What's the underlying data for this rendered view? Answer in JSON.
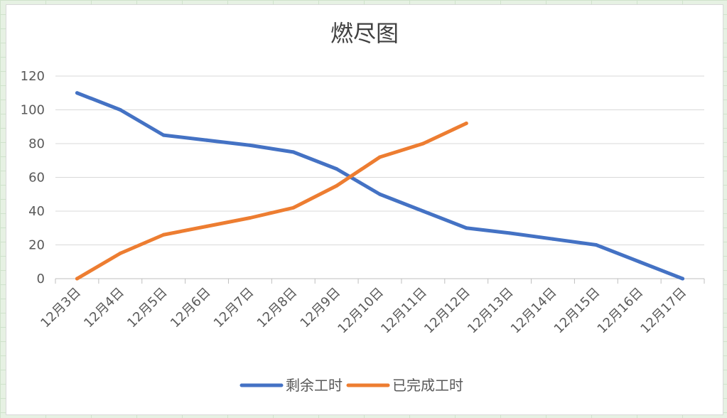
{
  "chart_data": {
    "type": "line",
    "title": "燃尽图",
    "xlabel": "",
    "ylabel": "",
    "ylim": [
      0,
      120
    ],
    "yticks": [
      0,
      20,
      40,
      60,
      80,
      100,
      120
    ],
    "grid": true,
    "legend_position": "bottom",
    "categories": [
      "12月3日",
      "12月4日",
      "12月5日",
      "12月6日",
      "12月7日",
      "12月8日",
      "12月9日",
      "12月10日",
      "12月11日",
      "12月12日",
      "12月13日",
      "12月14日",
      "12月15日",
      "12月16日",
      "12月17日"
    ],
    "series": [
      {
        "name": "剩余工时",
        "color": "#4472c4",
        "values": [
          110,
          100,
          85,
          82,
          79,
          75,
          65,
          50,
          40,
          30,
          27,
          23.5,
          20,
          10,
          0
        ]
      },
      {
        "name": "已完成工时",
        "color": "#ed7d31",
        "values": [
          0,
          15,
          26,
          31,
          36,
          42,
          55,
          72,
          80,
          92,
          null,
          null,
          null,
          null,
          null
        ]
      }
    ]
  }
}
